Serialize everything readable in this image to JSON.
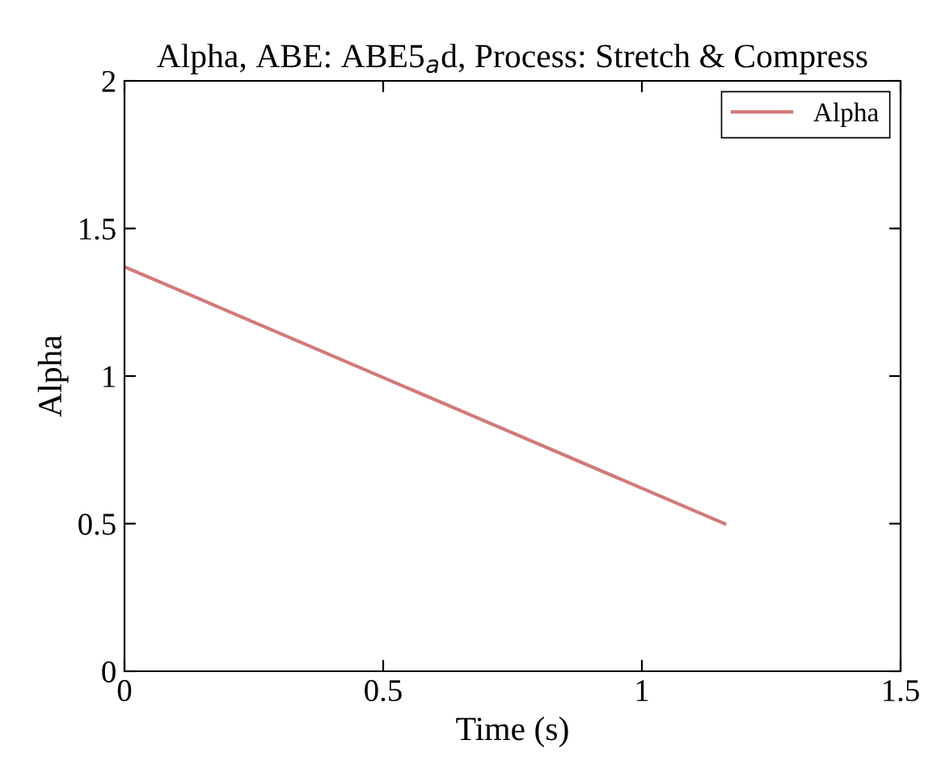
{
  "chart_data": {
    "type": "line",
    "title": "Alpha, ABE: ABE5$_{a}$d, Process: Stretch & Compress",
    "xlabel": "Time (s)",
    "ylabel": "Alpha",
    "x": [
      0,
      1.16
    ],
    "series": [
      {
        "name": "Alpha",
        "color": "#d27a7a",
        "values": [
          1.37,
          0.5
        ]
      }
    ],
    "xlim": [
      0,
      1.5
    ],
    "xticks": [
      0,
      0.5,
      1,
      1.5
    ],
    "ylim": [
      0,
      2
    ],
    "yticks": [
      0,
      0.5,
      1,
      1.5,
      2
    ],
    "grid": false,
    "legend": "top right",
    "line_style": "solid",
    "marker": "none"
  }
}
